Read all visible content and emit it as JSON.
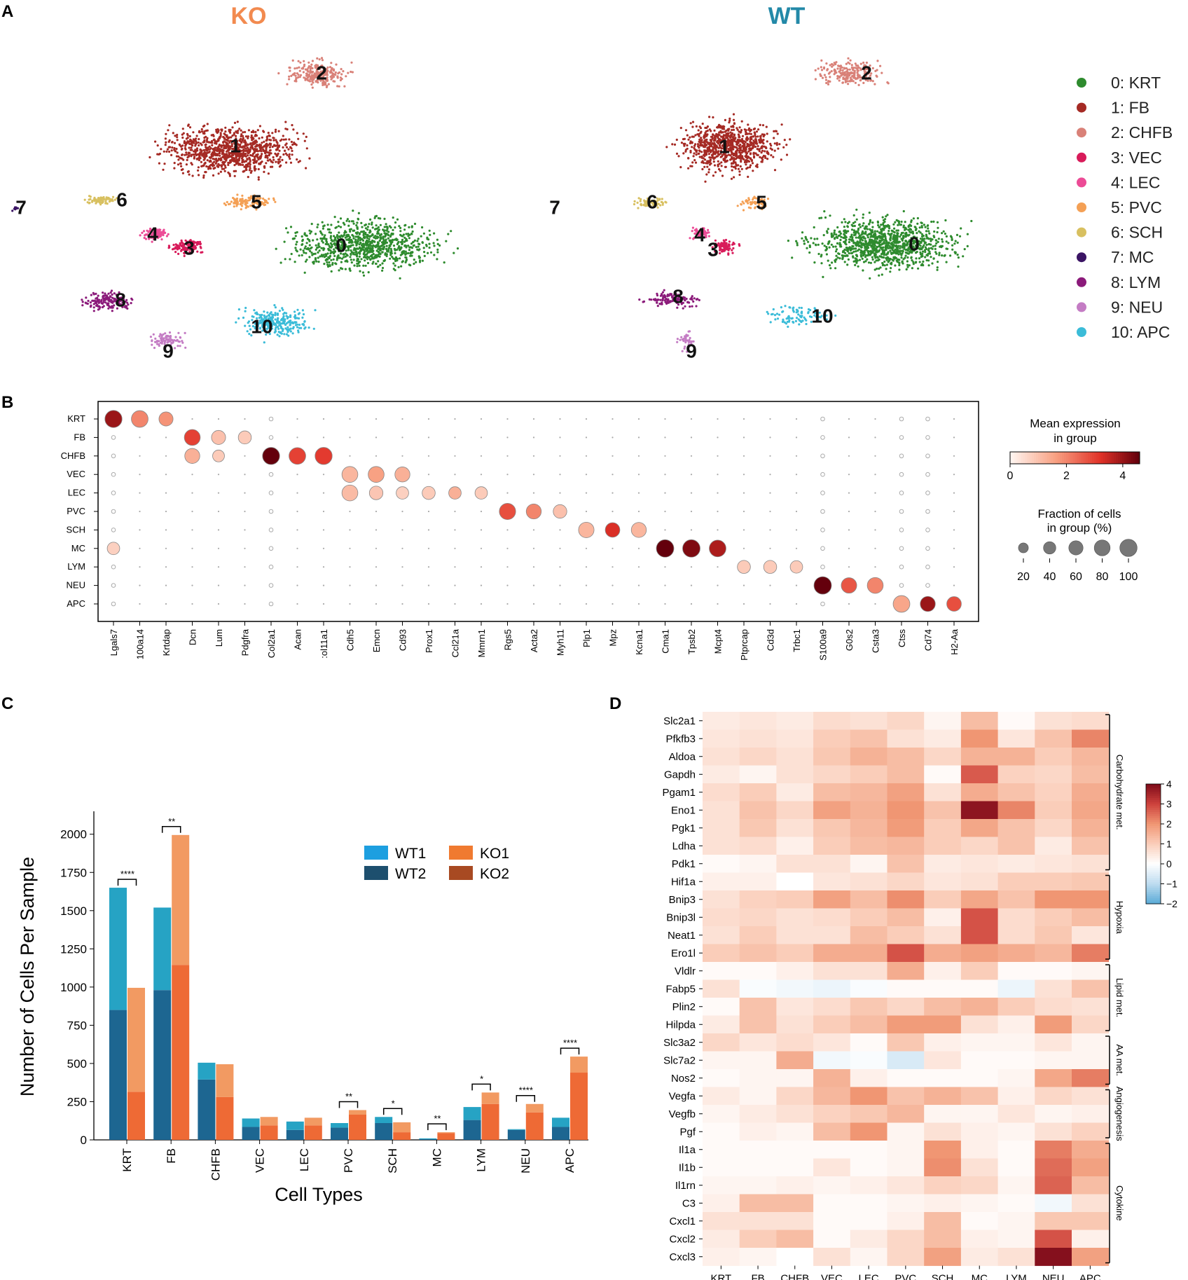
{
  "panel_letters": [
    "A",
    "B",
    "C",
    "D"
  ],
  "chart_data": [
    {
      "type": "scatter",
      "panel": "A",
      "subtype": "umap",
      "titles": [
        "KO",
        "WT"
      ],
      "title_colors": [
        "#f28a4f",
        "#2389a8"
      ],
      "cluster_names": [
        "0",
        "1",
        "2",
        "3",
        "4",
        "5",
        "6",
        "7",
        "8",
        "9",
        "10"
      ],
      "legend": [
        "0: KRT",
        "1: FB",
        "2: CHFB",
        "3: VEC",
        "4: LEC",
        "5: PVC",
        "6: SCH",
        "7: MC",
        "8: LYM",
        "9: NEU",
        "10: APC"
      ],
      "colors": [
        "#2e8b2e",
        "#a52a24",
        "#d98178",
        "#d81b5a",
        "#ec4b96",
        "#f4a055",
        "#d8c060",
        "#3b1464",
        "#8b1a7a",
        "#c47cc4",
        "#3bbcd8"
      ],
      "note": "point clouds are illustrative; cluster labels and legend read from figure"
    },
    {
      "type": "dot",
      "panel": "B",
      "rows": [
        "KRT",
        "FB",
        "CHFB",
        "VEC",
        "LEC",
        "PVC",
        "SCH",
        "MC",
        "LYM",
        "NEU",
        "APC"
      ],
      "genes": [
        "Lgals7",
        "100a14",
        "Krtdap",
        "Dcn",
        "Lum",
        "Pdgfra",
        "Col2a1",
        "Acan",
        ":ol11a1",
        "Cdh5",
        "Emcn",
        "Cd93",
        "Prox1",
        "Ccl21a",
        "Mmrn1",
        "Rgs5",
        "Acta2",
        "Myh11",
        "Plp1",
        "Mpz",
        "Kcna1",
        "Cma1",
        "Tpsb2",
        "Mcpt4",
        "Ptprcap",
        "Cd3d",
        "Trbc1",
        "S100a9",
        "G0s2",
        "Csta3",
        "Ctss",
        "Cd74",
        "H2-Aa"
      ],
      "dots": [
        [
          0,
          0,
          4.0,
          85
        ],
        [
          0,
          1,
          2.0,
          80
        ],
        [
          0,
          2,
          1.8,
          50
        ],
        [
          1,
          3,
          3.0,
          70
        ],
        [
          1,
          4,
          1.0,
          50
        ],
        [
          1,
          5,
          0.8,
          40
        ],
        [
          2,
          3,
          1.3,
          60
        ],
        [
          2,
          4,
          0.8,
          30
        ],
        [
          2,
          6,
          4.6,
          85
        ],
        [
          2,
          7,
          3.0,
          80
        ],
        [
          2,
          8,
          3.1,
          85
        ],
        [
          3,
          9,
          1.2,
          70
        ],
        [
          3,
          10,
          1.6,
          70
        ],
        [
          3,
          11,
          1.3,
          60
        ],
        [
          4,
          9,
          1.1,
          70
        ],
        [
          4,
          10,
          0.9,
          45
        ],
        [
          4,
          11,
          0.7,
          35
        ],
        [
          4,
          12,
          0.8,
          40
        ],
        [
          4,
          13,
          1.3,
          35
        ],
        [
          4,
          14,
          0.8,
          35
        ],
        [
          5,
          15,
          2.8,
          75
        ],
        [
          5,
          16,
          2.0,
          60
        ],
        [
          5,
          17,
          1.0,
          45
        ],
        [
          6,
          18,
          1.2,
          65
        ],
        [
          6,
          19,
          3.3,
          55
        ],
        [
          6,
          20,
          1.2,
          60
        ],
        [
          7,
          0,
          0.7,
          35
        ],
        [
          7,
          21,
          4.7,
          90
        ],
        [
          7,
          22,
          4.3,
          90
        ],
        [
          7,
          23,
          3.8,
          80
        ],
        [
          8,
          24,
          0.8,
          40
        ],
        [
          8,
          25,
          0.8,
          40
        ],
        [
          8,
          26,
          0.8,
          35
        ],
        [
          9,
          27,
          4.7,
          90
        ],
        [
          9,
          28,
          2.7,
          65
        ],
        [
          9,
          29,
          2.0,
          70
        ],
        [
          10,
          30,
          1.5,
          80
        ],
        [
          10,
          31,
          4.0,
          60
        ],
        [
          10,
          32,
          2.8,
          55
        ]
      ],
      "small_dot_genes_per_row_note": "remaining cells show tiny dots (fraction < 10%)",
      "colorbar": {
        "title": "Mean expression\nin group",
        "ticks": [
          "0",
          "2",
          "4"
        ],
        "range": [
          0,
          4.6
        ]
      },
      "size_legend": {
        "title": "Fraction of cells\nin group (%)",
        "values": [
          20,
          40,
          60,
          80,
          100
        ]
      }
    },
    {
      "type": "bar",
      "panel": "C",
      "stacked": true,
      "categories": [
        "KRT",
        "FB",
        "CHFB",
        "VEC",
        "LEC",
        "PVC",
        "SCH",
        "MC",
        "LYM",
        "NEU",
        "APC"
      ],
      "series": [
        {
          "name": "WT1",
          "color": "#26a3c4",
          "group": "WT",
          "values": [
            800,
            540,
            110,
            55,
            55,
            30,
            40,
            5,
            85,
            5,
            60
          ]
        },
        {
          "name": "WT2",
          "color": "#1d6691",
          "group": "WT",
          "values": [
            850,
            980,
            395,
            85,
            65,
            80,
            110,
            5,
            130,
            65,
            85
          ]
        },
        {
          "name": "KO1",
          "color": "#f29a62",
          "group": "KO",
          "values": [
            680,
            850,
            215,
            55,
            50,
            30,
            65,
            5,
            75,
            55,
            105
          ]
        },
        {
          "name": "KO2",
          "color": "#ee6a35",
          "group": "KO",
          "values": [
            315,
            1145,
            280,
            95,
            95,
            165,
            50,
            45,
            235,
            180,
            440
          ]
        }
      ],
      "significance": [
        "****",
        "**",
        "",
        "",
        "",
        "**",
        "*",
        "**",
        "*",
        "****",
        "****"
      ],
      "legend": [
        "WT1",
        "WT2",
        "KO1",
        "KO2"
      ],
      "legend_swatches": [
        "#1d9fe0",
        "#1d4f6e",
        "#f07a30",
        "#a84a22"
      ],
      "xlabel": "Cell Types",
      "ylabel": "Number of Cells Per Sample",
      "ylim": [
        0,
        2150
      ],
      "yticks": [
        0,
        250,
        500,
        750,
        1000,
        1250,
        1500,
        1750,
        2000
      ]
    },
    {
      "type": "heatmap",
      "panel": "D",
      "columns": [
        "KRT",
        "FB",
        "CHFB",
        "VEC",
        "LEC",
        "PVC",
        "SCH",
        "MC",
        "LYM",
        "NEU",
        "APC"
      ],
      "rows": [
        "Slc2a1",
        "Pfkfb3",
        "Aldoa",
        "Gapdh",
        "Pgam1",
        "Eno1",
        "Pgk1",
        "Ldha",
        "Pdk1",
        "Hif1a",
        "Bnip3",
        "Bnip3l",
        "Neat1",
        "Ero1l",
        "Vldlr",
        "Fabp5",
        "Plin2",
        "Hilpda",
        "Slc3a2",
        "Slc7a2",
        "Nos2",
        "Vegfa",
        "Vegfb",
        "Pgf",
        "Il1a",
        "Il1b",
        "Il1rn",
        "C3",
        "Cxcl1",
        "Cxcl2",
        "Cxcl3"
      ],
      "values": [
        [
          0.4,
          0.5,
          0.4,
          0.7,
          0.6,
          0.8,
          0.2,
          1.3,
          0.1,
          0.6,
          0.7
        ],
        [
          0.5,
          0.6,
          0.5,
          1.0,
          1.2,
          0.6,
          0.4,
          2.0,
          0.5,
          1.2,
          2.2
        ],
        [
          0.6,
          0.8,
          0.6,
          1.1,
          1.5,
          1.3,
          0.8,
          1.5,
          1.5,
          1.0,
          1.4
        ],
        [
          0.4,
          0.2,
          0.6,
          0.8,
          1.0,
          1.3,
          0.1,
          2.7,
          0.9,
          0.8,
          1.3
        ],
        [
          0.7,
          1.0,
          0.4,
          1.3,
          1.4,
          1.8,
          0.6,
          1.6,
          1.2,
          0.9,
          1.6
        ],
        [
          0.6,
          1.2,
          0.8,
          1.8,
          1.5,
          2.0,
          1.2,
          3.8,
          2.2,
          1.0,
          1.7
        ],
        [
          0.6,
          1.1,
          0.6,
          1.1,
          1.4,
          1.9,
          1.0,
          1.7,
          1.2,
          0.8,
          1.5
        ],
        [
          0.6,
          0.7,
          0.3,
          1.0,
          1.3,
          1.4,
          1.0,
          0.8,
          1.2,
          0.4,
          1.2
        ],
        [
          0.1,
          0.2,
          0.6,
          0.6,
          0.2,
          1.2,
          0.4,
          0.5,
          0.4,
          0.5,
          0.6
        ],
        [
          0.3,
          0.3,
          0.0,
          0.5,
          0.6,
          0.8,
          0.5,
          0.6,
          1.0,
          1.0,
          1.1
        ],
        [
          0.6,
          0.9,
          1.0,
          1.8,
          1.3,
          2.1,
          1.0,
          1.7,
          1.2,
          2.0,
          2.0
        ],
        [
          0.7,
          0.8,
          0.6,
          0.7,
          1.0,
          1.3,
          0.3,
          2.8,
          0.7,
          1.0,
          1.3
        ],
        [
          0.6,
          1.0,
          0.6,
          0.6,
          1.3,
          1.0,
          0.6,
          2.8,
          0.7,
          1.1,
          0.5
        ],
        [
          1.0,
          1.2,
          1.0,
          1.6,
          1.6,
          2.8,
          1.6,
          1.8,
          1.6,
          1.4,
          2.3
        ],
        [
          0.1,
          0.1,
          0.3,
          0.6,
          0.6,
          1.6,
          0.3,
          1.0,
          0.1,
          0.1,
          0.2
        ],
        [
          0.6,
          -0.1,
          -0.2,
          -0.3,
          -0.1,
          0.1,
          0.1,
          0.1,
          -0.3,
          0.6,
          1.2
        ],
        [
          0.1,
          1.2,
          0.5,
          0.7,
          1.1,
          0.8,
          1.3,
          1.5,
          1.0,
          0.7,
          0.6
        ],
        [
          0.4,
          1.2,
          0.6,
          1.0,
          1.3,
          1.9,
          1.9,
          0.6,
          0.3,
          1.9,
          0.8
        ],
        [
          0.8,
          0.5,
          0.7,
          0.5,
          0.1,
          1.1,
          0.3,
          0.2,
          0.2,
          0.5,
          0.2
        ],
        [
          0.2,
          0.2,
          1.6,
          -0.2,
          -0.1,
          -0.6,
          0.5,
          0.1,
          0.1,
          0.2,
          0.2
        ],
        [
          0.1,
          0.2,
          0.2,
          1.5,
          0.3,
          0.1,
          0.1,
          0.1,
          0.2,
          1.7,
          2.3
        ],
        [
          0.4,
          0.2,
          0.8,
          1.4,
          2.0,
          1.2,
          1.5,
          1.2,
          0.3,
          0.8,
          0.6
        ],
        [
          0.2,
          0.4,
          0.6,
          0.9,
          1.1,
          1.4,
          0.2,
          0.2,
          0.5,
          0.2,
          0.3
        ],
        [
          0.1,
          0.3,
          0.2,
          1.3,
          2.0,
          0.2,
          0.6,
          0.3,
          0.2,
          0.6,
          0.9
        ],
        [
          0.1,
          0.1,
          0.1,
          0.1,
          0.1,
          0.2,
          2.0,
          0.3,
          0.1,
          2.3,
          1.6
        ],
        [
          0.1,
          0.1,
          0.1,
          0.5,
          0.1,
          0.2,
          2.1,
          0.6,
          0.1,
          2.5,
          1.8
        ],
        [
          0.2,
          0.2,
          0.3,
          0.2,
          0.3,
          0.5,
          0.9,
          0.8,
          0.2,
          2.6,
          1.3
        ],
        [
          0.3,
          1.3,
          1.3,
          0.1,
          0.1,
          0.2,
          0.3,
          0.2,
          0.1,
          -0.2,
          0.6
        ],
        [
          0.6,
          0.6,
          0.6,
          0.1,
          0.1,
          0.3,
          1.3,
          0.1,
          0.2,
          1.1,
          1.1
        ],
        [
          0.4,
          1.0,
          1.3,
          0.1,
          0.4,
          0.8,
          1.3,
          0.3,
          0.2,
          2.8,
          0.3
        ],
        [
          0.3,
          0.2,
          0.0,
          0.6,
          0.2,
          0.8,
          1.8,
          0.4,
          0.6,
          3.9,
          1.8
        ]
      ],
      "groups": [
        {
          "label": "Carbohydrate met.",
          "start": 0,
          "end": 8
        },
        {
          "label": "Hypoxia",
          "start": 9,
          "end": 13
        },
        {
          "label": "Lipid met.",
          "start": 14,
          "end": 17
        },
        {
          "label": "AA met.",
          "start": 18,
          "end": 20
        },
        {
          "label": "Angiogenesis",
          "start": 21,
          "end": 23
        },
        {
          "label": "Cytokine",
          "start": 24,
          "end": 30
        }
      ],
      "colorbar": {
        "ticks": [
          "4",
          "3",
          "2",
          "1",
          "0",
          "−1",
          "−2"
        ],
        "range": [
          -2,
          4
        ]
      }
    }
  ]
}
